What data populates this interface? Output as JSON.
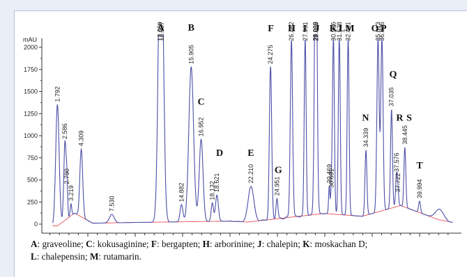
{
  "chart_data": {
    "type": "line",
    "ylabel": "mAU",
    "xunit": "min",
    "xlim": [
      0,
      44
    ],
    "ylim": [
      0,
      2050
    ],
    "xticks": [
      5,
      10,
      15,
      20,
      25,
      30,
      35,
      40
    ],
    "yticks": [
      0,
      250,
      500,
      750,
      1000,
      1250,
      1500,
      1750,
      2000
    ],
    "grid": false,
    "colors": {
      "trace": "#4b4fa6",
      "baseline": "#e8505b",
      "axis": "#333333"
    },
    "peaks": [
      {
        "rt": "1.792",
        "x": 1.792,
        "y": 1350,
        "w": 0.18
      },
      {
        "rt": "2.586",
        "x": 2.586,
        "y": 930,
        "w": 0.12
      },
      {
        "rt": "2.790",
        "x": 2.79,
        "y": 420,
        "w": 0.08
      },
      {
        "rt": "3.219",
        "x": 3.219,
        "y": 230,
        "w": 0.08
      },
      {
        "rt": "4.309",
        "x": 4.309,
        "y": 850,
        "w": 0.15
      },
      {
        "rt": "7.530",
        "x": 7.53,
        "y": 110,
        "w": 0.25
      },
      {
        "rt": "12.609",
        "x": 12.609,
        "y": 2150,
        "w": 0.22
      },
      {
        "rt": "12.807",
        "x": 12.807,
        "y": 2150,
        "w": 0.22
      },
      {
        "rt": "14.882",
        "x": 14.882,
        "y": 220,
        "w": 0.15
      },
      {
        "rt": "15.905",
        "x": 15.905,
        "y": 1780,
        "w": 0.25
      },
      {
        "rt": "16.952",
        "x": 16.952,
        "y": 960,
        "w": 0.2
      },
      {
        "rt": "18.132",
        "x": 18.132,
        "y": 240,
        "w": 0.12
      },
      {
        "rt": "18.621",
        "x": 18.621,
        "y": 330,
        "w": 0.15
      },
      {
        "rt": "22.210",
        "x": 22.21,
        "y": 430,
        "w": 0.3
      },
      {
        "rt": "24.275",
        "x": 24.275,
        "y": 1780,
        "w": 0.12
      },
      {
        "rt": "24.951",
        "x": 24.951,
        "y": 290,
        "w": 0.1
      },
      {
        "rt": "26.482",
        "x": 26.482,
        "y": 2100,
        "w": 0.12
      },
      {
        "rt": "27.931",
        "x": 27.931,
        "y": 2100,
        "w": 0.1
      },
      {
        "rt": "29.009",
        "x": 29.009,
        "y": 2100,
        "w": 0.12
      },
      {
        "rt": "29.089",
        "x": 29.089,
        "y": 2100,
        "w": 0.12
      },
      {
        "rt": "30.469",
        "x": 30.469,
        "y": 430,
        "w": 0.07
      },
      {
        "rt": "30.691",
        "x": 30.691,
        "y": 380,
        "w": 0.07
      },
      {
        "rt": "30.906",
        "x": 30.906,
        "y": 2100,
        "w": 0.1
      },
      {
        "rt": "31.528",
        "x": 31.528,
        "y": 2100,
        "w": 0.1
      },
      {
        "rt": "32.461",
        "x": 32.461,
        "y": 2100,
        "w": 0.1
      },
      {
        "rt": "34.339",
        "x": 34.339,
        "y": 840,
        "w": 0.1
      },
      {
        "rt": "35.613",
        "x": 35.613,
        "y": 2100,
        "w": 0.12
      },
      {
        "rt": "36.025",
        "x": 36.025,
        "y": 2100,
        "w": 0.12
      },
      {
        "rt": "37.035",
        "x": 37.035,
        "y": 1300,
        "w": 0.1
      },
      {
        "rt": "37.576",
        "x": 37.576,
        "y": 560,
        "w": 0.1
      },
      {
        "rt": "37.722",
        "x": 37.722,
        "y": 330,
        "w": 0.08
      },
      {
        "rt": "38.445",
        "x": 38.445,
        "y": 870,
        "w": 0.1
      },
      {
        "rt": "39.994",
        "x": 39.994,
        "y": 260,
        "w": 0.1
      }
    ],
    "annotations": [
      {
        "letter": "A",
        "x": 12.7,
        "y": 2190
      },
      {
        "letter": "B",
        "x": 15.9,
        "y": 2190
      },
      {
        "letter": "C",
        "x": 16.95,
        "y": 1350
      },
      {
        "letter": "D",
        "x": 18.9,
        "y": 770
      },
      {
        "letter": "E",
        "x": 22.2,
        "y": 770
      },
      {
        "letter": "F",
        "x": 24.3,
        "y": 2180
      },
      {
        "letter": "G",
        "x": 25.1,
        "y": 580
      },
      {
        "letter": "H",
        "x": 26.5,
        "y": 2180
      },
      {
        "letter": "I",
        "x": 27.9,
        "y": 2180
      },
      {
        "letter": "J",
        "x": 29.2,
        "y": 2180
      },
      {
        "letter": "K",
        "x": 30.9,
        "y": 2180
      },
      {
        "letter": "LM",
        "x": 32.3,
        "y": 2180
      },
      {
        "letter": "O",
        "x": 35.3,
        "y": 2180
      },
      {
        "letter": "P",
        "x": 36.2,
        "y": 2180
      },
      {
        "letter": "Q",
        "x": 37.2,
        "y": 1660
      },
      {
        "letter": "N",
        "x": 34.3,
        "y": 1170
      },
      {
        "letter": "R",
        "x": 37.9,
        "y": 1170
      },
      {
        "letter": "S",
        "x": 38.9,
        "y": 1170
      },
      {
        "letter": "T",
        "x": 40.0,
        "y": 630
      }
    ]
  },
  "caption": {
    "line1": [
      {
        "key": "A",
        "text": ": graveoline; "
      },
      {
        "key": "C",
        "text": ": kokusaginine; "
      },
      {
        "key": "F",
        "text": ": bergapten; "
      },
      {
        "key": "H",
        "text": ": arborinine; "
      },
      {
        "key": "J",
        "text": ": chalepin; "
      },
      {
        "key": "K",
        "text": ": moskachan D;"
      }
    ],
    "line2": [
      {
        "key": "L",
        "text": ": chalepensin; "
      },
      {
        "key": "M",
        "text": ": rutamarin."
      }
    ]
  }
}
